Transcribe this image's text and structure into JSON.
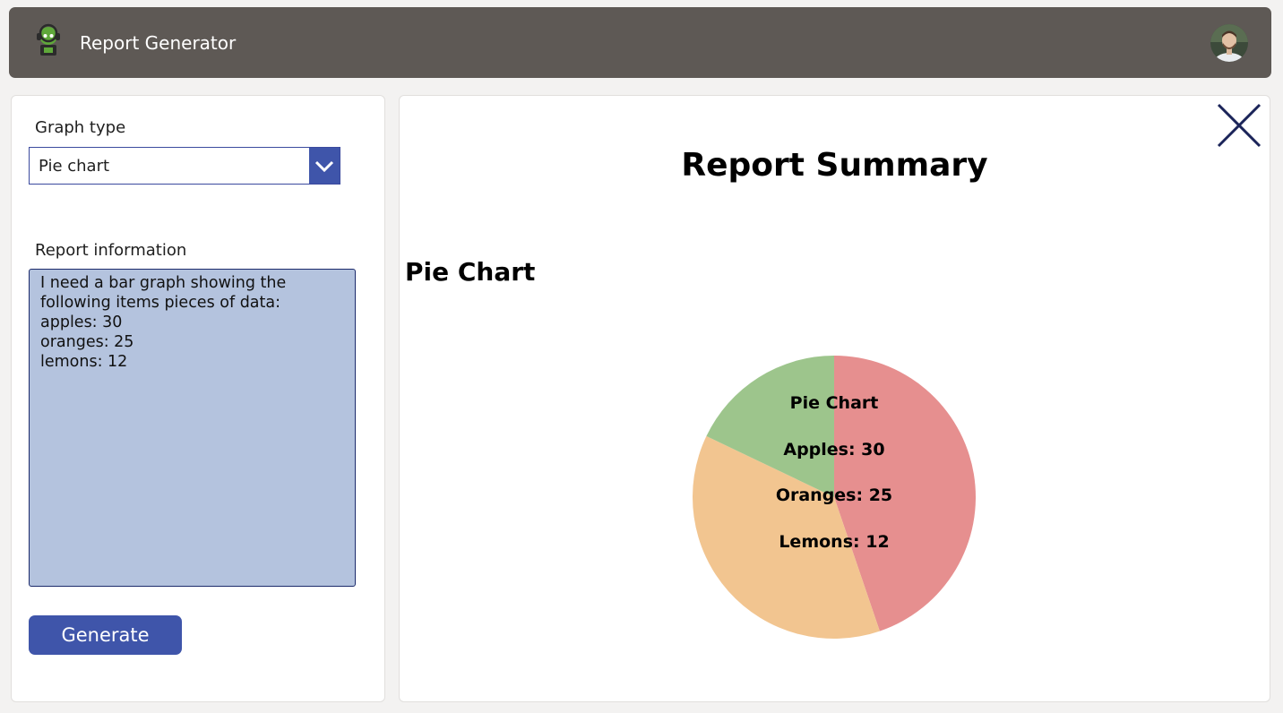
{
  "header": {
    "title": "Report Generator",
    "logo_icon": "robot-logo-icon",
    "avatar_icon": "user-avatar-icon"
  },
  "form": {
    "graph_type_label": "Graph type",
    "graph_type_value": "Pie chart",
    "report_info_label": "Report information",
    "report_info_value": "I need a bar graph showing the\nfollowing items pieces of data:\napples: 30\noranges: 25\nlemons: 12",
    "generate_label": "Generate"
  },
  "report": {
    "title": "Report Summary",
    "chart_heading": "Pie Chart",
    "close_icon": "close-icon"
  },
  "colors": {
    "header_bg": "#5e5955",
    "accent": "#3f55aa",
    "textarea_bg": "#b4c3de",
    "close_icon": "#1b2459"
  },
  "chart_data": {
    "type": "pie",
    "title": "Pie Chart",
    "categories": [
      "Apples",
      "Oranges",
      "Lemons"
    ],
    "values": [
      30,
      25,
      12
    ],
    "slice_colors": [
      "#e68f8f",
      "#f2c590",
      "#9dc58c"
    ],
    "labels": [
      "Apples: 30",
      "Oranges: 25",
      "Lemons: 12"
    ]
  }
}
